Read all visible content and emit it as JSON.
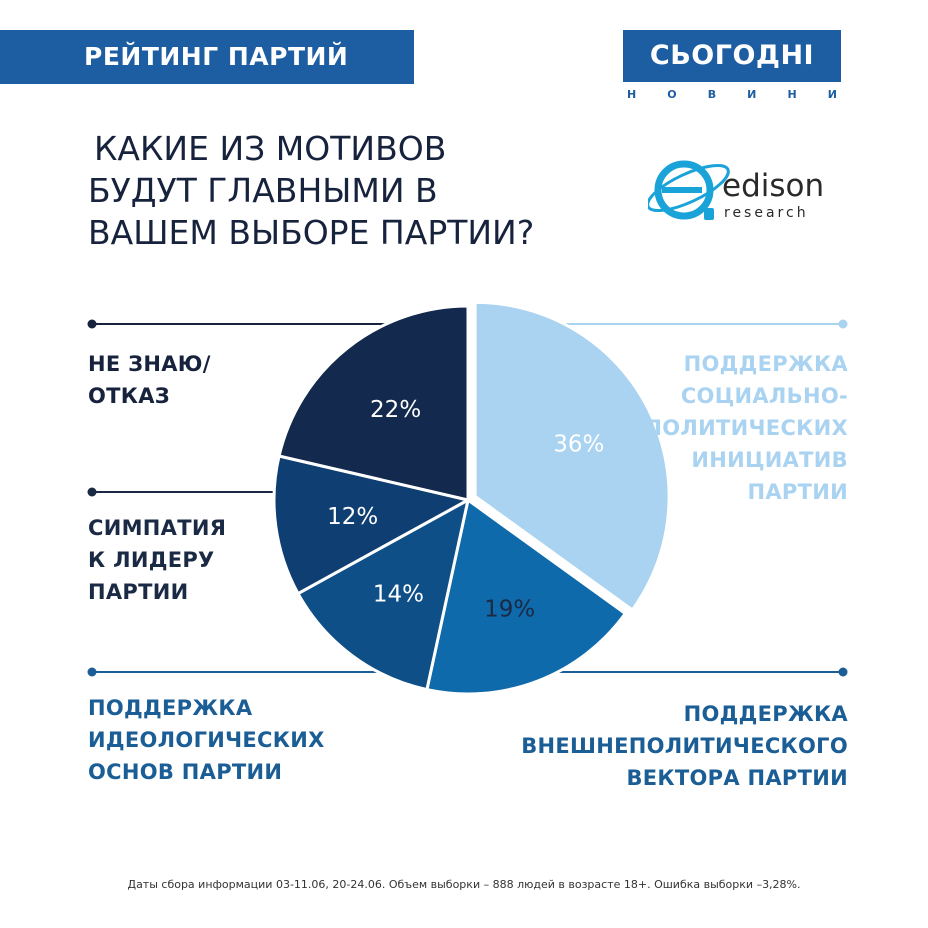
{
  "header": {
    "banner": "РЕЙТИНГ ПАРТИЙ",
    "logo_title": "СЬОГОДНІ",
    "logo_sub": [
      "Н",
      "О",
      "В",
      "И",
      "Н",
      "И"
    ],
    "edison_word": "edison",
    "edison_sub": "research"
  },
  "colors": {
    "brand": "#1d5da1",
    "dark": "#17223d"
  },
  "chart_data": {
    "type": "pie",
    "title_lines": [
      "КАКИЕ ИЗ МОТИВОВ",
      "БУДУТ ГЛАВНЫМИ В",
      "ВАШЕМ ВЫБОРЕ ПАРТИИ?"
    ],
    "slices": [
      {
        "label": [
          "ПОДДЕРЖКА",
          "СОЦИАЛЬНО-",
          "ПОЛИТИЧЕСКИХ",
          "ИНИЦИАТИВ",
          "ПАРТИИ"
        ],
        "value": 36,
        "value_label": "36%",
        "color": "#a9d3f0",
        "text_color": "#a9d3f0",
        "label_color": "#ffffff"
      },
      {
        "label": [
          "ПОДДЕРЖКА",
          "ВНЕШНЕПОЛИТИЧЕСКОГО",
          "ВЕКТОРА ПАРТИИ"
        ],
        "value": 19,
        "value_label": "19%",
        "color": "#0e6aaa",
        "text_color": "#1b5e96",
        "label_color": "#1b2a44"
      },
      {
        "label": [
          "ПОДДЕРЖКА",
          "ИДЕОЛОГИЧЕСКИХ",
          "ОСНОВ ПАРТИИ"
        ],
        "value": 14,
        "value_label": "14%",
        "color": "#0e4f87",
        "text_color": "#1b5e96",
        "label_color": "#ffffff"
      },
      {
        "label": [
          "СИМПАТИЯ",
          "К ЛИДЕРУ",
          "ПАРТИИ"
        ],
        "value": 12,
        "value_label": "12%",
        "color": "#0f3f72",
        "text_color": "#1b2a44",
        "label_color": "#ffffff"
      },
      {
        "label": [
          "НЕ ЗНАЮ/",
          "ОТКАЗ"
        ],
        "value": 22,
        "value_label": "22%",
        "color": "#13294d",
        "text_color": "#17223d",
        "label_color": "#ffffff"
      }
    ],
    "legend": "around"
  },
  "footnote": "Даты сбора информации 03-11.06, 20-24.06. Объем выборки – 888  людей в возрасте 18+. Ошибка выборки –3,28%."
}
